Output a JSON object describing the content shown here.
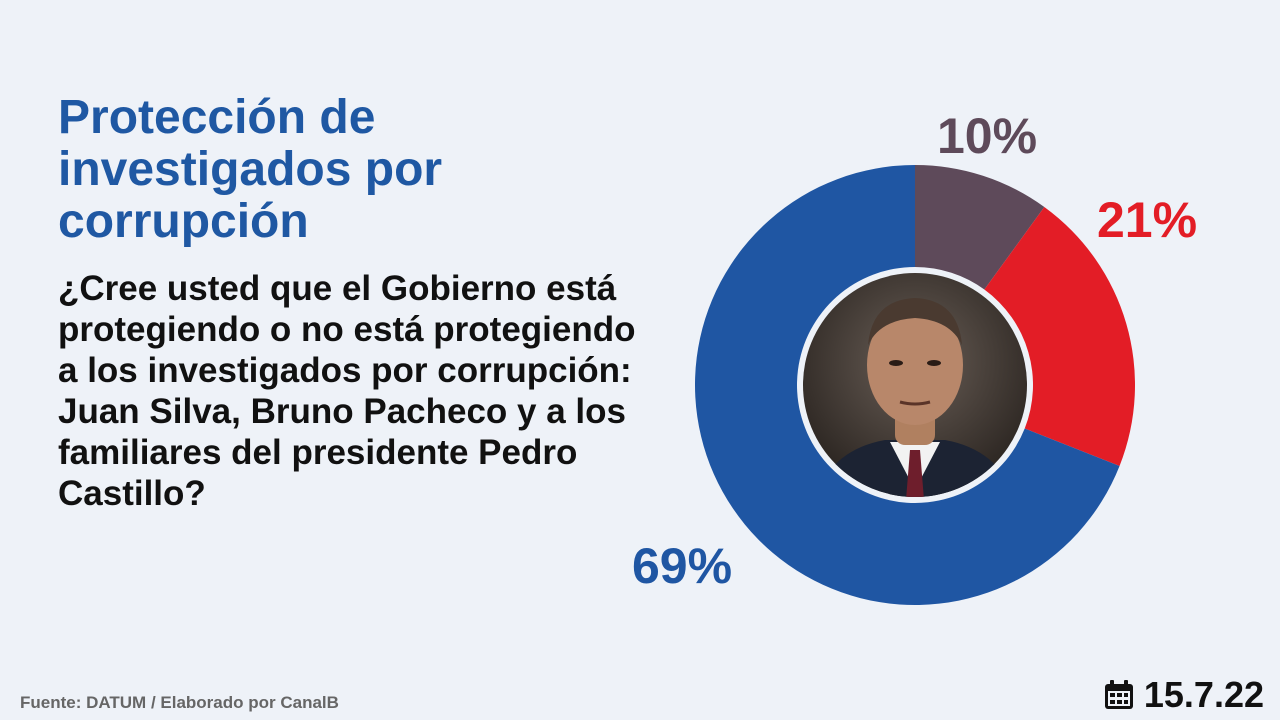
{
  "header": {
    "title": "Protección de investigados por corrupción",
    "question": "¿Cree usted que el Gobierno está protegiendo o no está protegiendo a los investigados por corrupción: Juan Silva, Bruno Pacheco y a los familiares del presidente Pedro Castillo?"
  },
  "chart_data": {
    "type": "pie",
    "donut": true,
    "slices": [
      {
        "label": "10%",
        "value": 10,
        "color": "#5e4a5a"
      },
      {
        "label": "21%",
        "value": 21,
        "color": "#e31d26"
      },
      {
        "label": "69%",
        "value": 69,
        "color": "#1f56a3"
      }
    ]
  },
  "footer": {
    "source": "Fuente: DATUM / Elaborado por CanalB",
    "date": "15.7.22",
    "date_icon": "calendar-icon"
  }
}
